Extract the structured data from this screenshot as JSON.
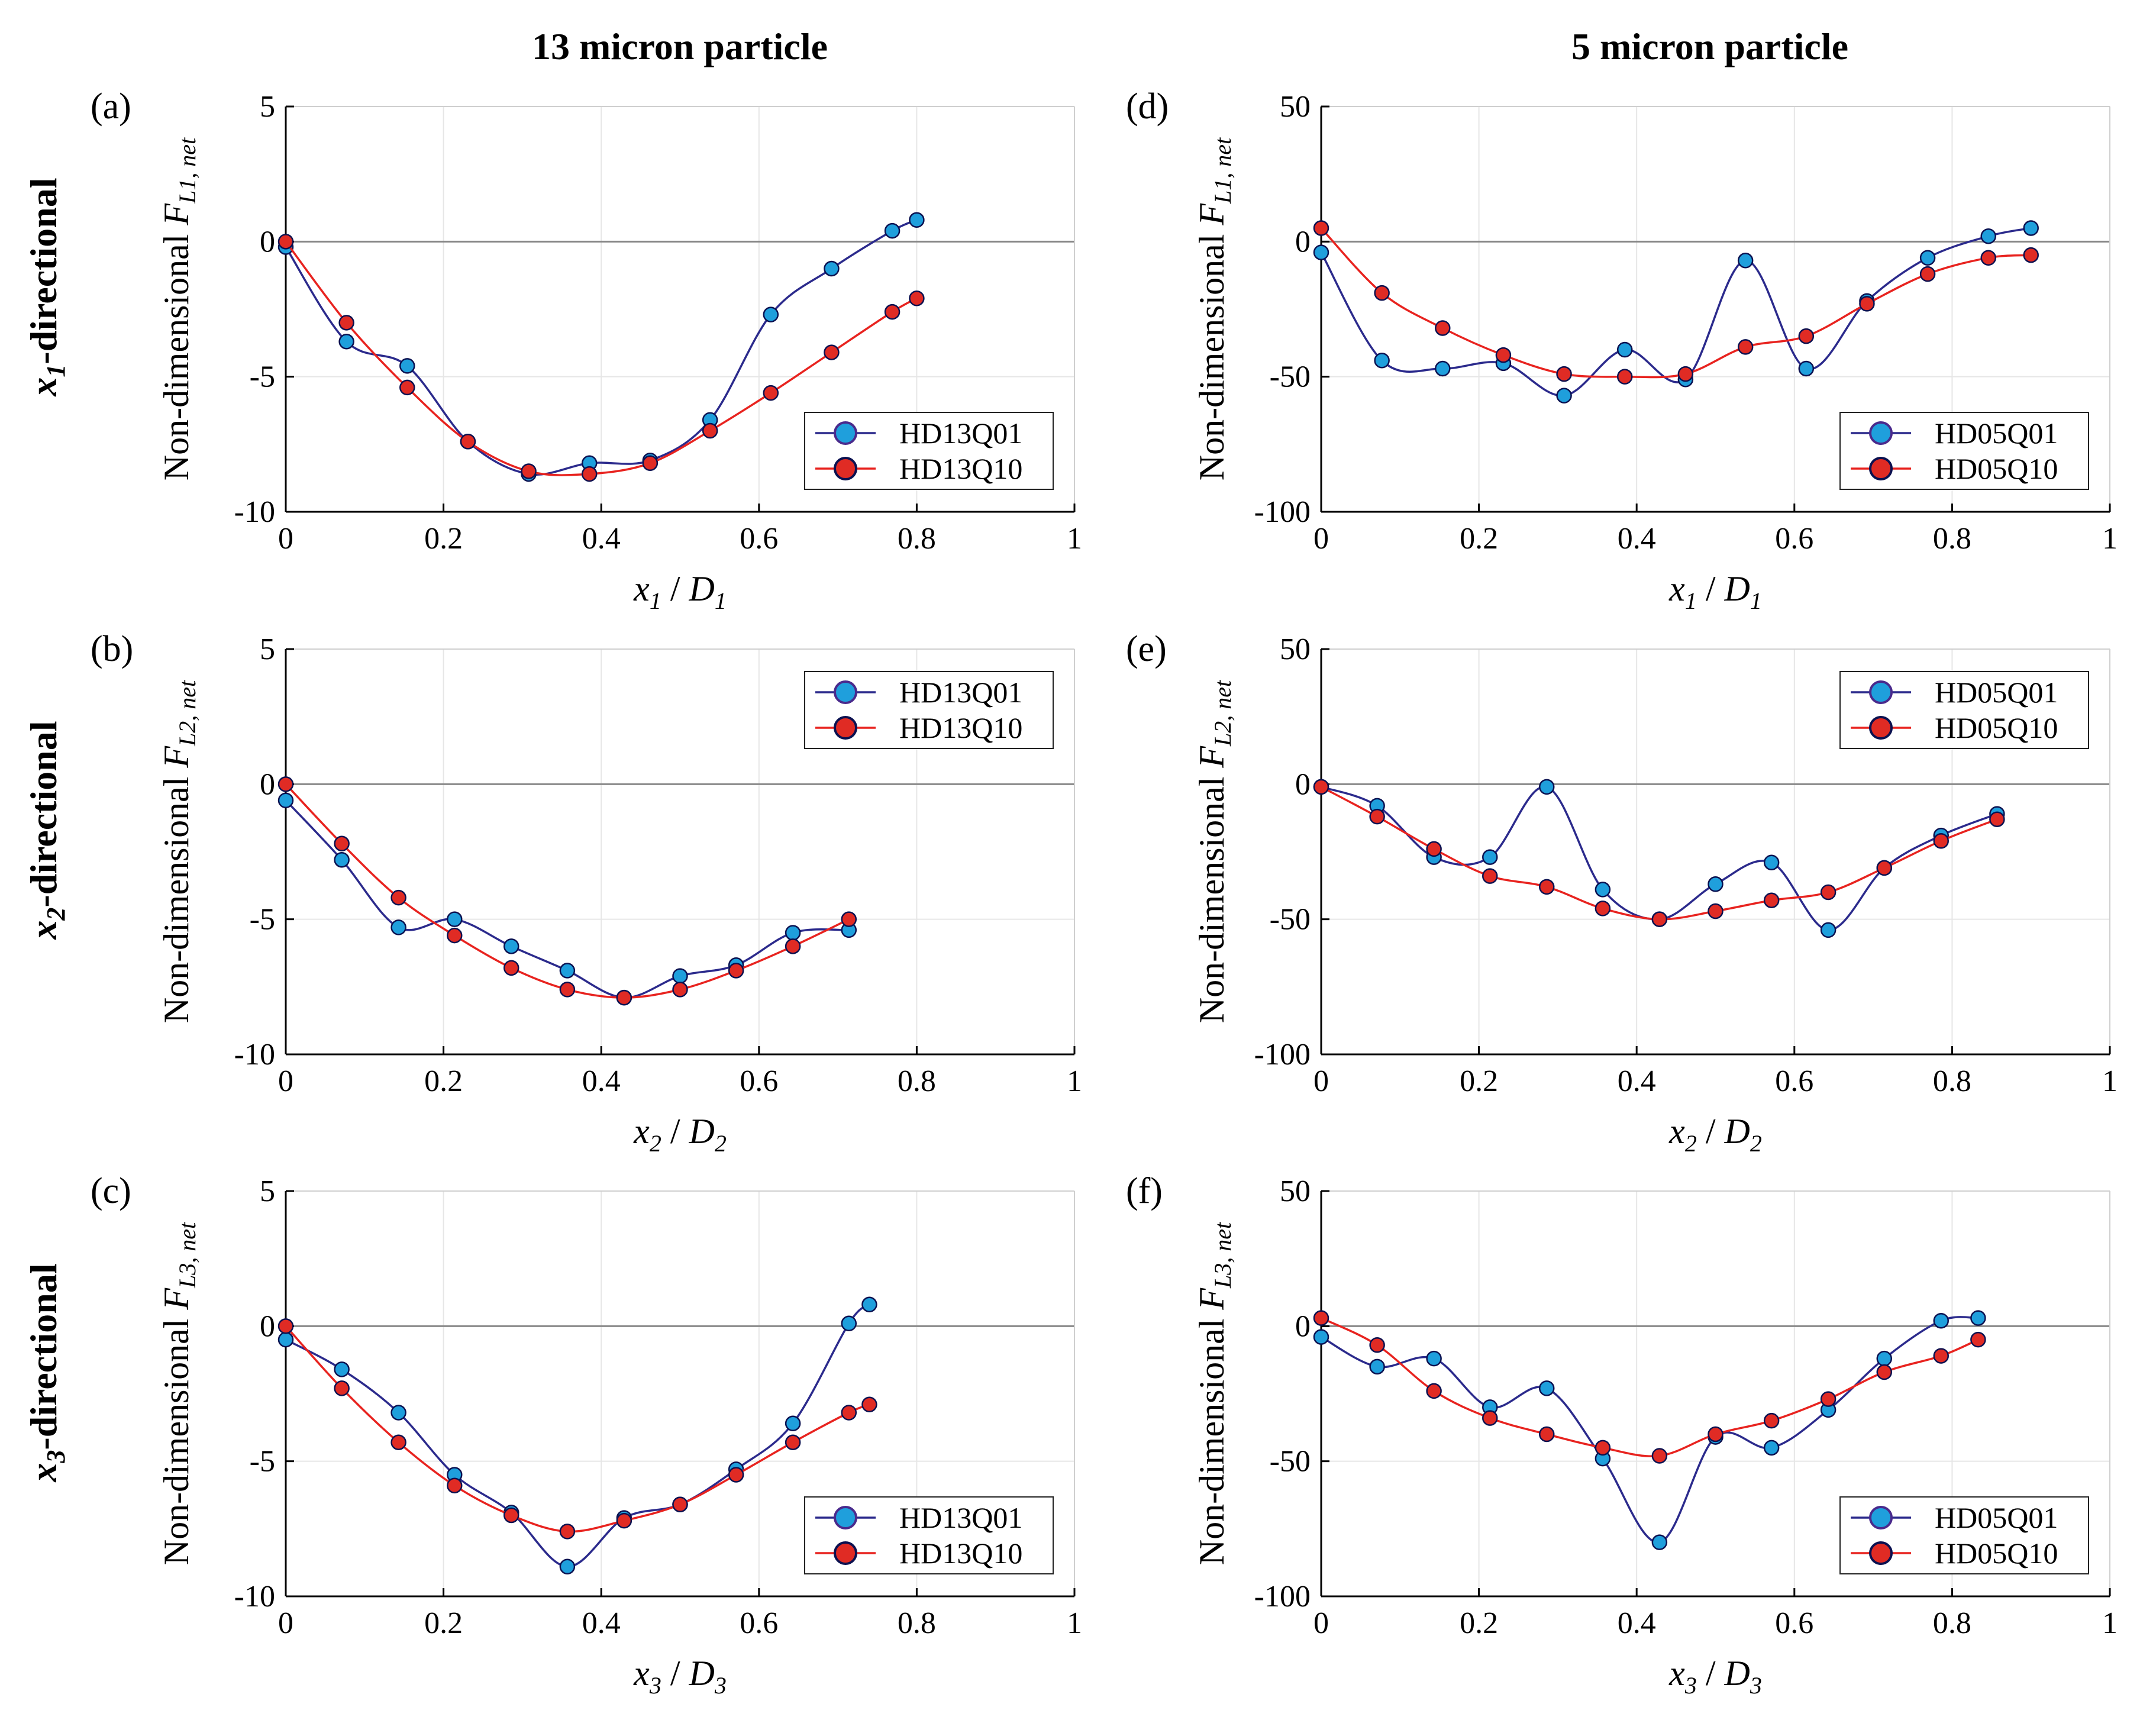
{
  "column_titles": [
    "13 micron particle",
    "5 micron particle"
  ],
  "row_labels": [
    {
      "sym": "x",
      "sub": "1",
      "rest": "-directional"
    },
    {
      "sym": "x",
      "sub": "2",
      "rest": "-directional"
    },
    {
      "sym": "x",
      "sub": "3",
      "rest": "-directional"
    }
  ],
  "colors": {
    "q01_line": "#2b2a8c",
    "q01_marker": "#1f9fdc",
    "q10_line": "#e8231f",
    "q10_marker": "#e02b24",
    "marker_edge": "#0b1150",
    "grid": "#e6e6e6",
    "axis": "#000000",
    "zero_line": "#8a8a8a"
  },
  "chart_data": [
    {
      "panel": "(a)",
      "type": "line",
      "ylabel_prefix": "Non-dimensional ",
      "ylabel_sym": "F",
      "ylabel_sub": "L1, net",
      "xlabel_sym": "x",
      "xlabel_sub": "1",
      "xlabel_sep": " / ",
      "xlabel_sym2": "D",
      "xlabel_sub2": "1",
      "xlim": [
        0,
        1
      ],
      "ylim": [
        -10,
        5
      ],
      "xticks": [
        0,
        0.2,
        0.4,
        0.6,
        0.8,
        1
      ],
      "xtick_labels": [
        "0",
        "0.2",
        "0.4",
        "0.6",
        "0.8",
        "1"
      ],
      "yticks": [
        -10,
        -5,
        0,
        5
      ],
      "ytick_labels": [
        "-10",
        "-5",
        "0",
        "5"
      ],
      "legend_pos": "bottom-right",
      "series": [
        {
          "name": "HD13Q01",
          "style": "q01",
          "x": [
            0,
            0.077,
            0.154,
            0.231,
            0.308,
            0.385,
            0.462,
            0.538,
            0.615,
            0.692,
            0.769,
            0.8
          ],
          "y": [
            -0.2,
            -3.7,
            -4.6,
            -7.4,
            -8.6,
            -8.2,
            -8.1,
            -6.6,
            -2.7,
            -1.0,
            0.4,
            0.8
          ]
        },
        {
          "name": "HD13Q10",
          "style": "q10",
          "x": [
            0,
            0.077,
            0.154,
            0.231,
            0.308,
            0.385,
            0.462,
            0.538,
            0.615,
            0.692,
            0.769,
            0.8
          ],
          "y": [
            0.0,
            -3.0,
            -5.4,
            -7.4,
            -8.5,
            -8.6,
            -8.2,
            -7.0,
            -5.6,
            -4.1,
            -2.6,
            -2.1
          ]
        }
      ]
    },
    {
      "panel": "(b)",
      "type": "line",
      "ylabel_prefix": "Non-dimensional ",
      "ylabel_sym": "F",
      "ylabel_sub": "L2, net",
      "xlabel_sym": "x",
      "xlabel_sub": "2",
      "xlabel_sep": " / ",
      "xlabel_sym2": "D",
      "xlabel_sub2": "2",
      "xlim": [
        0,
        1
      ],
      "ylim": [
        -10,
        5
      ],
      "xticks": [
        0,
        0.2,
        0.4,
        0.6,
        0.8,
        1
      ],
      "xtick_labels": [
        "0",
        "0.2",
        "0.4",
        "0.6",
        "0.8",
        "1"
      ],
      "yticks": [
        -10,
        -5,
        0,
        5
      ],
      "ytick_labels": [
        "-10",
        "-5",
        "0",
        "5"
      ],
      "legend_pos": "top-right",
      "series": [
        {
          "name": "HD13Q01",
          "style": "q01",
          "x": [
            0,
            0.071,
            0.143,
            0.214,
            0.286,
            0.357,
            0.429,
            0.5,
            0.571,
            0.643,
            0.714
          ],
          "y": [
            -0.6,
            -2.8,
            -5.3,
            -5.0,
            -6.0,
            -6.9,
            -7.9,
            -7.1,
            -6.7,
            -5.5,
            -5.4
          ]
        },
        {
          "name": "HD13Q10",
          "style": "q10",
          "x": [
            0,
            0.071,
            0.143,
            0.214,
            0.286,
            0.357,
            0.429,
            0.5,
            0.571,
            0.643,
            0.714
          ],
          "y": [
            0.0,
            -2.2,
            -4.2,
            -5.6,
            -6.8,
            -7.6,
            -7.9,
            -7.6,
            -6.9,
            -6.0,
            -5.0
          ]
        }
      ]
    },
    {
      "panel": "(c)",
      "type": "line",
      "ylabel_prefix": "Non-dimensional ",
      "ylabel_sym": "F",
      "ylabel_sub": "L3, net",
      "xlabel_sym": "x",
      "xlabel_sub": "3",
      "xlabel_sep": " / ",
      "xlabel_sym2": "D",
      "xlabel_sub2": "3",
      "xlim": [
        0,
        1
      ],
      "ylim": [
        -10,
        5
      ],
      "xticks": [
        0,
        0.2,
        0.4,
        0.6,
        0.8,
        1
      ],
      "xtick_labels": [
        "0",
        "0.2",
        "0.4",
        "0.6",
        "0.8",
        "1"
      ],
      "yticks": [
        -10,
        -5,
        0,
        5
      ],
      "ytick_labels": [
        "-10",
        "-5",
        "0",
        "5"
      ],
      "legend_pos": "bottom-right",
      "series": [
        {
          "name": "HD13Q01",
          "style": "q01",
          "x": [
            0,
            0.071,
            0.143,
            0.214,
            0.286,
            0.357,
            0.429,
            0.5,
            0.571,
            0.643,
            0.714,
            0.74
          ],
          "y": [
            -0.5,
            -1.6,
            -3.2,
            -5.5,
            -6.9,
            -8.9,
            -7.1,
            -6.6,
            -5.3,
            -3.6,
            0.1,
            0.8
          ]
        },
        {
          "name": "HD13Q10",
          "style": "q10",
          "x": [
            0,
            0.071,
            0.143,
            0.214,
            0.286,
            0.357,
            0.429,
            0.5,
            0.571,
            0.643,
            0.714,
            0.74
          ],
          "y": [
            0.0,
            -2.3,
            -4.3,
            -5.9,
            -7.0,
            -7.6,
            -7.2,
            -6.6,
            -5.5,
            -4.3,
            -3.2,
            -2.9
          ]
        }
      ]
    },
    {
      "panel": "(d)",
      "type": "line",
      "ylabel_prefix": "Non-dimensional ",
      "ylabel_sym": "F",
      "ylabel_sub": "L1, net",
      "xlabel_sym": "x",
      "xlabel_sub": "1",
      "xlabel_sep": " / ",
      "xlabel_sym2": "D",
      "xlabel_sub2": "1",
      "xlim": [
        0,
        1
      ],
      "ylim": [
        -100,
        50
      ],
      "xticks": [
        0,
        0.2,
        0.4,
        0.6,
        0.8,
        1
      ],
      "xtick_labels": [
        "0",
        "0.2",
        "0.4",
        "0.6",
        "0.8",
        "1"
      ],
      "yticks": [
        -100,
        -50,
        0,
        50
      ],
      "ytick_labels": [
        "-100",
        "-50",
        "0",
        "50"
      ],
      "legend_pos": "bottom-right",
      "series": [
        {
          "name": "HD05Q01",
          "style": "q01",
          "x": [
            0,
            0.077,
            0.154,
            0.231,
            0.308,
            0.385,
            0.462,
            0.538,
            0.615,
            0.692,
            0.769,
            0.846,
            0.9
          ],
          "y": [
            -4,
            -44,
            -47,
            -45,
            -57,
            -40,
            -51,
            -7,
            -47,
            -22,
            -6,
            2,
            5
          ]
        },
        {
          "name": "HD05Q10",
          "style": "q10",
          "x": [
            0,
            0.077,
            0.154,
            0.231,
            0.308,
            0.385,
            0.462,
            0.538,
            0.615,
            0.692,
            0.769,
            0.846,
            0.9
          ],
          "y": [
            5,
            -19,
            -32,
            -42,
            -49,
            -50,
            -49,
            -39,
            -35,
            -23,
            -12,
            -6,
            -5
          ]
        }
      ]
    },
    {
      "panel": "(e)",
      "type": "line",
      "ylabel_prefix": "Non-dimensional ",
      "ylabel_sym": "F",
      "ylabel_sub": "L2, net",
      "xlabel_sym": "x",
      "xlabel_sub": "2",
      "xlabel_sep": " / ",
      "xlabel_sym2": "D",
      "xlabel_sub2": "2",
      "xlim": [
        0,
        1
      ],
      "ylim": [
        -100,
        50
      ],
      "xticks": [
        0,
        0.2,
        0.4,
        0.6,
        0.8,
        1
      ],
      "xtick_labels": [
        "0",
        "0.2",
        "0.4",
        "0.6",
        "0.8",
        "1"
      ],
      "yticks": [
        -100,
        -50,
        0,
        50
      ],
      "ytick_labels": [
        "-100",
        "-50",
        "0",
        "50"
      ],
      "legend_pos": "top-right",
      "series": [
        {
          "name": "HD05Q01",
          "style": "q01",
          "x": [
            0,
            0.071,
            0.143,
            0.214,
            0.286,
            0.357,
            0.429,
            0.5,
            0.571,
            0.643,
            0.714,
            0.786,
            0.857
          ],
          "y": [
            -1,
            -8,
            -27,
            -27,
            -1,
            -39,
            -50,
            -37,
            -29,
            -54,
            -31,
            -19,
            -11
          ]
        },
        {
          "name": "HD05Q10",
          "style": "q10",
          "x": [
            0,
            0.071,
            0.143,
            0.214,
            0.286,
            0.357,
            0.429,
            0.5,
            0.571,
            0.643,
            0.714,
            0.786,
            0.857
          ],
          "y": [
            -1,
            -12,
            -24,
            -34,
            -38,
            -46,
            -50,
            -47,
            -43,
            -40,
            -31,
            -21,
            -13
          ]
        }
      ]
    },
    {
      "panel": "(f)",
      "type": "line",
      "ylabel_prefix": "Non-dimensional ",
      "ylabel_sym": "F",
      "ylabel_sub": "L3, net",
      "xlabel_sym": "x",
      "xlabel_sub": "3",
      "xlabel_sep": " / ",
      "xlabel_sym2": "D",
      "xlabel_sub2": "3",
      "xlim": [
        0,
        1
      ],
      "ylim": [
        -100,
        50
      ],
      "xticks": [
        0,
        0.2,
        0.4,
        0.6,
        0.8,
        1
      ],
      "xtick_labels": [
        "0",
        "0.2",
        "0.4",
        "0.6",
        "0.8",
        "1"
      ],
      "yticks": [
        -100,
        -50,
        0,
        50
      ],
      "ytick_labels": [
        "-100",
        "-50",
        "0",
        "50"
      ],
      "legend_pos": "bottom-right",
      "series": [
        {
          "name": "HD05Q01",
          "style": "q01",
          "x": [
            0,
            0.071,
            0.143,
            0.214,
            0.286,
            0.357,
            0.429,
            0.5,
            0.571,
            0.643,
            0.714,
            0.786,
            0.833
          ],
          "y": [
            -4,
            -15,
            -12,
            -30,
            -23,
            -49,
            -80,
            -41,
            -45,
            -31,
            -12,
            2,
            3
          ]
        },
        {
          "name": "HD05Q10",
          "style": "q10",
          "x": [
            0,
            0.071,
            0.143,
            0.214,
            0.286,
            0.357,
            0.429,
            0.5,
            0.571,
            0.643,
            0.714,
            0.786,
            0.833
          ],
          "y": [
            3,
            -7,
            -24,
            -34,
            -40,
            -45,
            -48,
            -40,
            -35,
            -27,
            -17,
            -11,
            -5
          ]
        }
      ]
    }
  ]
}
